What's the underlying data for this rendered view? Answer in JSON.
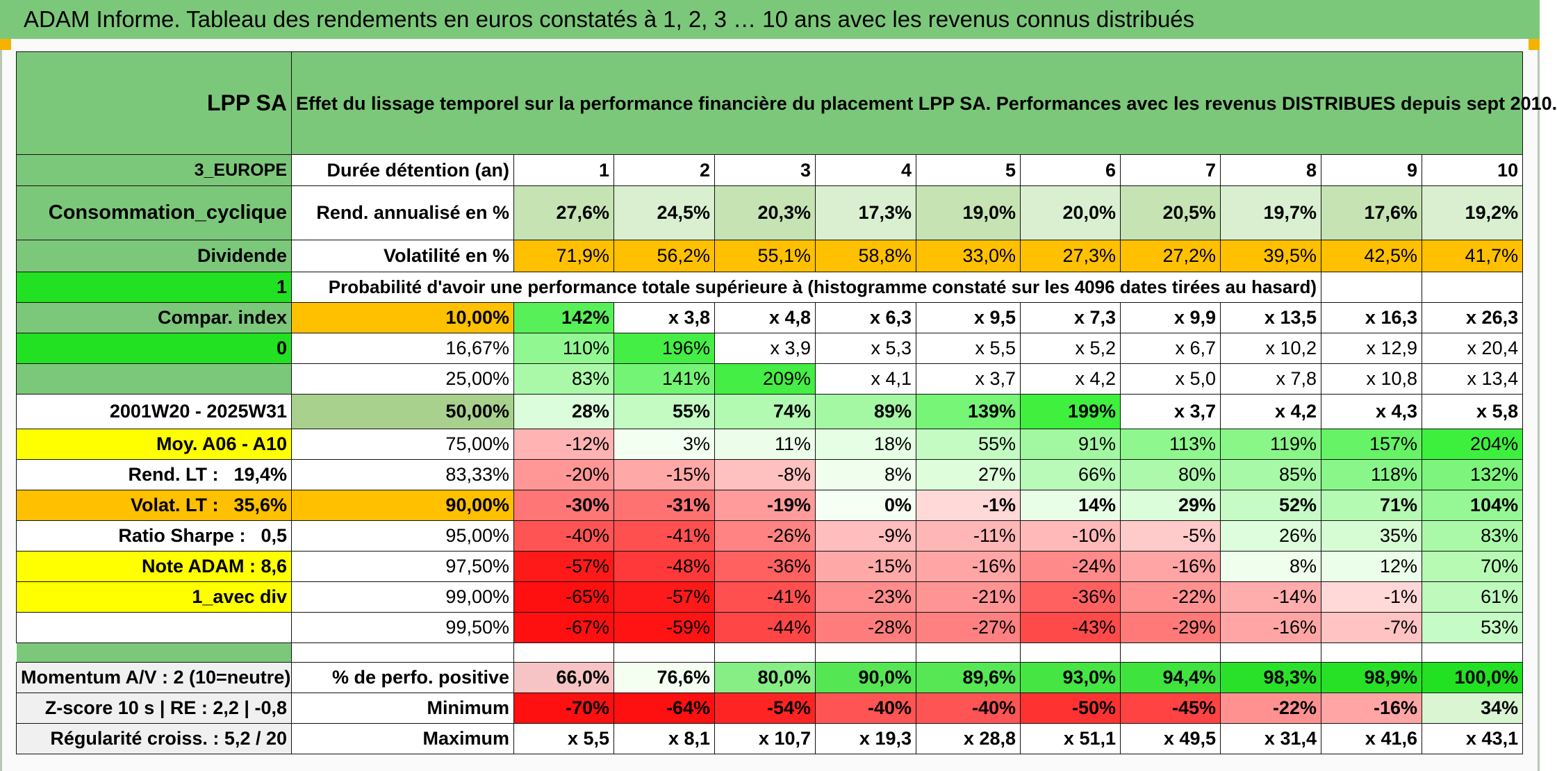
{
  "banner": "ADAM Informe. Tableau des rendements en euros constatés à 1, 2, 3 … 10 ans avec les revenus connus distribués",
  "header": {
    "fund": "LPP SA",
    "title": "Effet du lissage temporel sur la performance financière du placement LPP SA. Performances avec les revenus DISTRIBUES depuis sept 2010."
  },
  "side": {
    "region": "3_EUROPE",
    "sector": "Consommation_cyclique",
    "dividend": "Dividende",
    "flag1": "1",
    "compar": "Compar. index",
    "flag0": "0",
    "period": "2001W20 - 2025W31",
    "moy": "Moy. A06 - A10",
    "rend_label": "Rend. LT :",
    "rend_value": "19,4%",
    "volat_label": "Volat. LT :",
    "volat_value": "35,6%",
    "sharpe_label": "Ratio Sharpe :",
    "sharpe_value": "0,5",
    "note": "Note ADAM : 8,6",
    "avec_div": "1_avec div",
    "momentum": "Momentum A/V : 2 (10=neutre)",
    "zscore": "Z-score 10 s | RE : 2,2 | -0,8",
    "regularite": "Régularité croiss. : 5,2 / 20"
  },
  "rows_labels": {
    "duree": "Durée détention (an)",
    "rend": "Rend. annualisé en %",
    "vol": "Volatilité en %",
    "proba": "Probabilité d'avoir une performance totale supérieure à (histogramme constaté sur les 4096 dates tirées au hasard)",
    "perfo_pos": "% de perfo. positive",
    "minimum": "Minimum",
    "maximum": "Maximum"
  },
  "years": [
    "1",
    "2",
    "3",
    "4",
    "5",
    "6",
    "7",
    "8",
    "9",
    "10"
  ],
  "rend": [
    "27,6%",
    "24,5%",
    "20,3%",
    "17,3%",
    "19,0%",
    "20,0%",
    "20,5%",
    "19,7%",
    "17,6%",
    "19,2%"
  ],
  "vol": [
    "71,9%",
    "56,2%",
    "55,1%",
    "58,8%",
    "33,0%",
    "27,3%",
    "27,2%",
    "39,5%",
    "42,5%",
    "41,7%"
  ],
  "quantiles": [
    {
      "p": "10,00%",
      "v": [
        "142%",
        "x 3,8",
        "x 4,8",
        "x 6,3",
        "x 9,5",
        "x 7,3",
        "x 9,9",
        "x 13,5",
        "x 16,3",
        "x 26,3"
      ]
    },
    {
      "p": "16,67%",
      "v": [
        "110%",
        "196%",
        "x 3,9",
        "x 5,3",
        "x 5,5",
        "x 5,2",
        "x 6,7",
        "x 10,2",
        "x 12,9",
        "x 20,4"
      ]
    },
    {
      "p": "25,00%",
      "v": [
        "83%",
        "141%",
        "209%",
        "x 4,1",
        "x 3,7",
        "x 4,2",
        "x 5,0",
        "x 7,8",
        "x 10,8",
        "x 13,4"
      ]
    },
    {
      "p": "50,00%",
      "v": [
        "28%",
        "55%",
        "74%",
        "89%",
        "139%",
        "199%",
        "x 3,7",
        "x 4,2",
        "x 4,3",
        "x 5,8"
      ]
    },
    {
      "p": "75,00%",
      "v": [
        "-12%",
        "3%",
        "11%",
        "18%",
        "55%",
        "91%",
        "113%",
        "119%",
        "157%",
        "204%"
      ]
    },
    {
      "p": "83,33%",
      "v": [
        "-20%",
        "-15%",
        "-8%",
        "8%",
        "27%",
        "66%",
        "80%",
        "85%",
        "118%",
        "132%"
      ]
    },
    {
      "p": "90,00%",
      "v": [
        "-30%",
        "-31%",
        "-19%",
        "0%",
        "-1%",
        "14%",
        "29%",
        "52%",
        "71%",
        "104%"
      ]
    },
    {
      "p": "95,00%",
      "v": [
        "-40%",
        "-41%",
        "-26%",
        "-9%",
        "-11%",
        "-10%",
        "-5%",
        "26%",
        "35%",
        "83%"
      ]
    },
    {
      "p": "97,50%",
      "v": [
        "-57%",
        "-48%",
        "-36%",
        "-15%",
        "-16%",
        "-24%",
        "-16%",
        "8%",
        "12%",
        "70%"
      ]
    },
    {
      "p": "99,00%",
      "v": [
        "-65%",
        "-57%",
        "-41%",
        "-23%",
        "-21%",
        "-36%",
        "-22%",
        "-14%",
        "-1%",
        "61%"
      ]
    },
    {
      "p": "99,50%",
      "v": [
        "-67%",
        "-59%",
        "-44%",
        "-28%",
        "-27%",
        "-43%",
        "-29%",
        "-16%",
        "-7%",
        "53%"
      ]
    }
  ],
  "perfo_pos": [
    "66,0%",
    "76,6%",
    "80,0%",
    "90,0%",
    "89,6%",
    "93,0%",
    "94,4%",
    "98,3%",
    "98,9%",
    "100,0%"
  ],
  "minimum": [
    "-70%",
    "-64%",
    "-54%",
    "-40%",
    "-40%",
    "-50%",
    "-45%",
    "-22%",
    "-16%",
    "34%"
  ],
  "maximum": [
    "x 5,5",
    "x 8,1",
    "x 10,7",
    "x 19,3",
    "x 28,8",
    "x 51,1",
    "x 49,5",
    "x 31,4",
    "x 41,6",
    "x 43,1"
  ],
  "colors": {
    "header_green": "#7cc87a",
    "bright_green": "#22e022",
    "orange": "#ffc000",
    "yellow": "#ffff00",
    "label_red": "#d01010"
  }
}
